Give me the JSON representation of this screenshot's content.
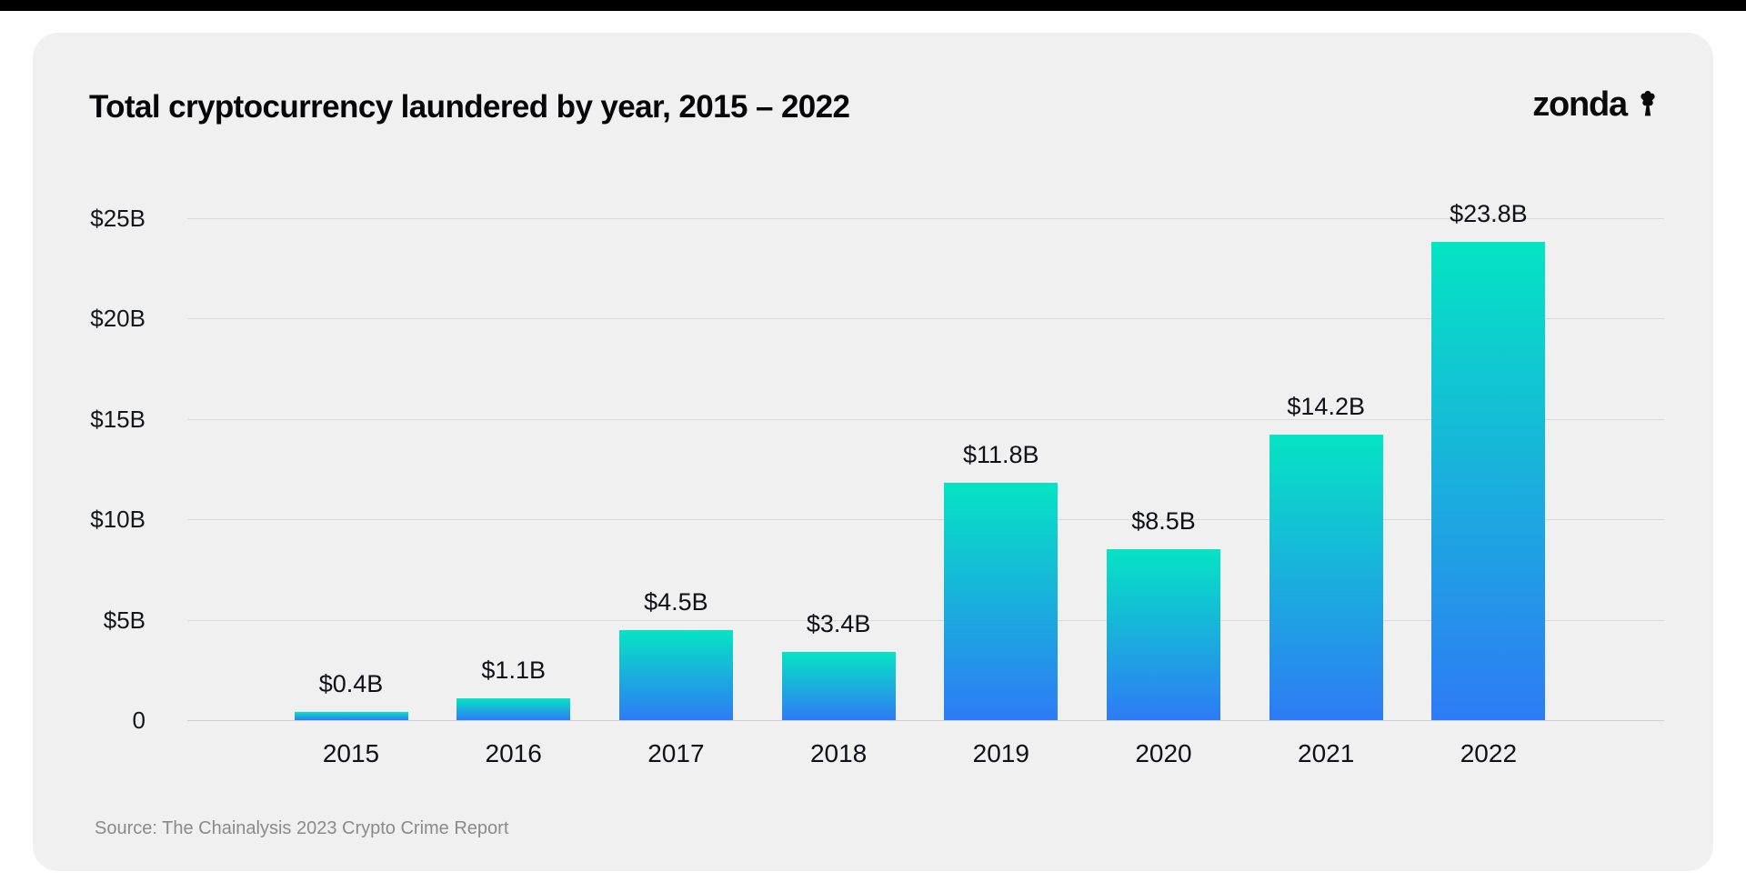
{
  "header": {
    "title": "Total cryptocurrency laundered by year, 2015 – 2022",
    "logo_text": "zonda"
  },
  "footer": {
    "source": "Source: The Chainalysis 2023 Crypto Crime Report"
  },
  "colors": {
    "page_background": "#FFFFFF",
    "top_strip": "#000000",
    "card_background": "#F0F0F0",
    "bar_gradient_top": "#05E4C3",
    "bar_gradient_bottom": "#2E7BF5",
    "gridline": "#D9D9D9",
    "text_primary": "#101116",
    "text_muted": "#8A8A8A"
  },
  "chart_data": {
    "type": "bar",
    "title": "Total cryptocurrency laundered by year, 2015 – 2022",
    "categories": [
      "2015",
      "2016",
      "2017",
      "2018",
      "2019",
      "2020",
      "2021",
      "2022"
    ],
    "values": [
      0.4,
      1.1,
      4.5,
      3.4,
      11.8,
      8.5,
      14.2,
      23.8
    ],
    "bar_labels": [
      "$0.4B",
      "$1.1B",
      "$4.5B",
      "$3.4B",
      "$11.8B",
      "$8.5B",
      "$14.2B",
      "$23.8B"
    ],
    "xlabel": "",
    "ylabel": "",
    "ylim": [
      0,
      25
    ],
    "yticks": [
      {
        "value": 0,
        "label": "0"
      },
      {
        "value": 5,
        "label": "$5B"
      },
      {
        "value": 10,
        "label": "$10B"
      },
      {
        "value": 15,
        "label": "$15B"
      },
      {
        "value": 20,
        "label": "$20B"
      },
      {
        "value": 25,
        "label": "$25B"
      }
    ],
    "grid": true,
    "legend": false,
    "source": "Source: The Chainalysis 2023 Crypto Crime Report"
  }
}
